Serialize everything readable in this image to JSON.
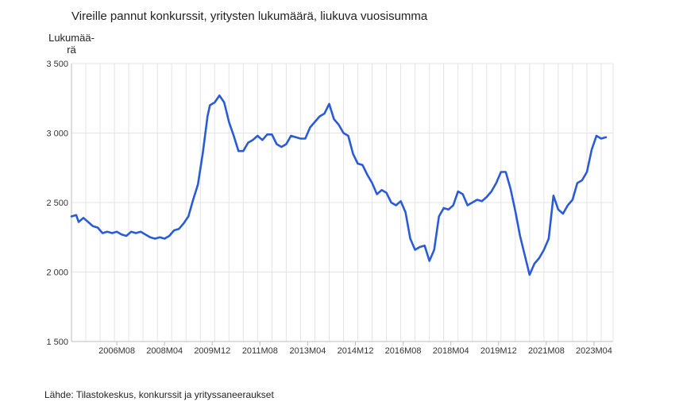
{
  "chart_data": {
    "type": "line",
    "title": "Vireille pannut konkurssit, yritysten lukumäärä, liukuva vuosisumma",
    "ylabel": "Lukumää-\nrä",
    "xlabel": "",
    "ylim": [
      1500,
      3500
    ],
    "yticks": [
      {
        "value": 3500,
        "label": "3 500"
      },
      {
        "value": 3000,
        "label": "3 000"
      },
      {
        "value": 2500,
        "label": "2 500"
      },
      {
        "value": 2000,
        "label": "2 000"
      },
      {
        "value": 1500,
        "label": "1 500"
      }
    ],
    "xlim": [
      "2005M01",
      "2023M12"
    ],
    "xticks": [
      "2006M08",
      "2008M04",
      "2009M12",
      "2011M08",
      "2013M04",
      "2014M12",
      "2016M08",
      "2018M04",
      "2019M12",
      "2021M08",
      "2023M04"
    ],
    "grid": true,
    "series": [
      {
        "color": "#2a5bd7",
        "x": [
          "2005M01",
          "2005M03",
          "2005M04",
          "2005M06",
          "2005M08",
          "2005M10",
          "2005M12",
          "2006M02",
          "2006M04",
          "2006M06",
          "2006M08",
          "2006M10",
          "2006M12",
          "2007M02",
          "2007M04",
          "2007M06",
          "2007M08",
          "2007M10",
          "2007M12",
          "2008M02",
          "2008M04",
          "2008M06",
          "2008M08",
          "2008M10",
          "2008M12",
          "2009M02",
          "2009M04",
          "2009M06",
          "2009M08",
          "2009M10",
          "2009M11",
          "2010M01",
          "2010M03",
          "2010M05",
          "2010M07",
          "2010M09",
          "2010M11",
          "2011M01",
          "2011M03",
          "2011M05",
          "2011M07",
          "2011M09",
          "2011M11",
          "2012M01",
          "2012M03",
          "2012M05",
          "2012M07",
          "2012M09",
          "2012M11",
          "2013M01",
          "2013M03",
          "2013M05",
          "2013M07",
          "2013M09",
          "2013M11",
          "2014M01",
          "2014M03",
          "2014M05",
          "2014M07",
          "2014M09",
          "2014M11",
          "2015M01",
          "2015M03",
          "2015M05",
          "2015M07",
          "2015M09",
          "2015M11",
          "2016M01",
          "2016M03",
          "2016M05",
          "2016M07",
          "2016M09",
          "2016M11",
          "2017M01",
          "2017M03",
          "2017M05",
          "2017M07",
          "2017M09",
          "2017M11",
          "2018M01",
          "2018M03",
          "2018M05",
          "2018M07",
          "2018M09",
          "2018M11",
          "2019M01",
          "2019M03",
          "2019M05",
          "2019M07",
          "2019M09",
          "2019M11",
          "2020M01",
          "2020M03",
          "2020M05",
          "2020M07",
          "2020M09",
          "2020M11",
          "2021M01",
          "2021M03",
          "2021M05",
          "2021M07",
          "2021M09",
          "2021M11",
          "2022M01",
          "2022M03",
          "2022M05",
          "2022M07",
          "2022M09",
          "2022M11",
          "2023M01",
          "2023M03",
          "2023M05",
          "2023M07",
          "2023M09"
        ],
        "values": [
          2400,
          2410,
          2360,
          2390,
          2360,
          2330,
          2320,
          2280,
          2290,
          2280,
          2290,
          2270,
          2260,
          2290,
          2280,
          2290,
          2270,
          2250,
          2240,
          2250,
          2240,
          2260,
          2300,
          2310,
          2350,
          2400,
          2520,
          2630,
          2850,
          3120,
          3200,
          3220,
          3270,
          3220,
          3080,
          2980,
          2870,
          2870,
          2930,
          2950,
          2980,
          2950,
          2990,
          2990,
          2920,
          2900,
          2920,
          2980,
          2970,
          2960,
          2960,
          3040,
          3080,
          3120,
          3140,
          3210,
          3100,
          3060,
          3000,
          2980,
          2850,
          2780,
          2770,
          2700,
          2640,
          2560,
          2590,
          2570,
          2500,
          2480,
          2510,
          2430,
          2240,
          2160,
          2180,
          2190,
          2080,
          2160,
          2400,
          2460,
          2450,
          2480,
          2580,
          2560,
          2480,
          2500,
          2520,
          2510,
          2540,
          2580,
          2640,
          2720,
          2720,
          2600,
          2440,
          2260,
          2120,
          1980,
          2060,
          2100,
          2160,
          2240,
          2550,
          2450,
          2420,
          2480,
          2520,
          2640,
          2660,
          2720,
          2880,
          2980,
          2960,
          2970
        ]
      }
    ]
  },
  "footer": {
    "source": "Lähde: Tilastokeskus, konkurssit ja yrityssaneeraukset"
  }
}
